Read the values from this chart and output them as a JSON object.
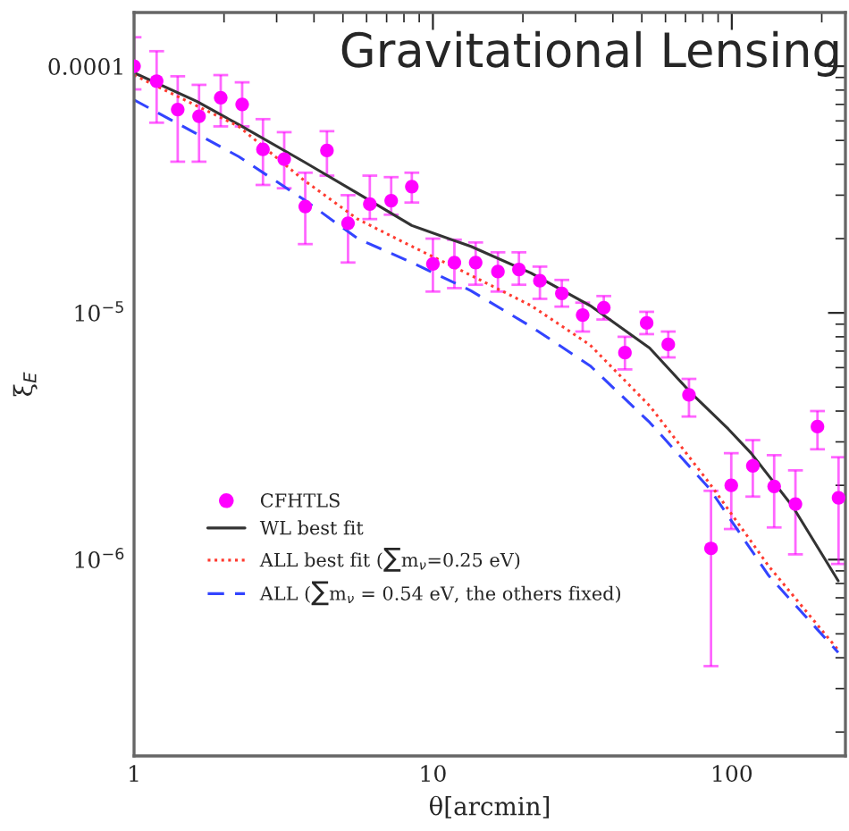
{
  "chart_data": {
    "type": "line",
    "title": "Gravitational Lensing",
    "xlabel": "θ[arcmin]",
    "ylabel": "ξ$_{E}$",
    "log": "xy",
    "xlim": [
      1,
      240
    ],
    "ylim": [
      1.6e-07,
      0.000165
    ],
    "xticks": [
      1,
      10,
      100
    ],
    "yticks": [
      {
        "value": 0.0001,
        "label": "0.0001"
      },
      {
        "value": 1e-05,
        "label": "10$^{−5}$"
      },
      {
        "value": 1e-06,
        "label": "10$^{−6}$"
      }
    ],
    "grid": false,
    "legend": "bottom left",
    "series": [
      {
        "name": "CFHTLS",
        "type": "scatter",
        "marker": "circle",
        "color": "#ff00ff",
        "x": [
          1.0,
          1.19,
          1.4,
          1.65,
          1.95,
          2.3,
          2.7,
          3.18,
          3.74,
          4.42,
          5.2,
          6.15,
          7.25,
          8.5,
          10.0,
          11.8,
          13.9,
          16.5,
          19.4,
          22.8,
          27.0,
          31.7,
          37.3,
          43.9,
          51.9,
          61.3,
          71.9,
          85.2,
          99.6,
          117.6,
          138.6,
          163.3,
          193.5,
          227.6
        ],
        "values": [
          0.0001,
          8.7e-05,
          6.67e-05,
          6.27e-05,
          7.45e-05,
          7e-05,
          4.6e-05,
          4.2e-05,
          2.7e-05,
          4.55e-05,
          2.31e-05,
          2.76e-05,
          2.85e-05,
          3.25e-05,
          1.58e-05,
          1.6e-05,
          1.6e-05,
          1.47e-05,
          1.5e-05,
          1.35e-05,
          1.2e-05,
          9.8e-06,
          1.05e-05,
          6.9e-06,
          9.1e-06,
          7.45e-06,
          4.65e-06,
          1.11e-06,
          2e-06,
          2.4e-06,
          1.98e-06,
          1.68e-06,
          3.46e-06,
          1.78e-06
        ],
        "errors": [
          [
            8.05e-05,
            0.000131
          ],
          [
            5.9e-05,
            0.000115
          ],
          [
            4.1e-05,
            9.1e-05
          ],
          [
            4.1e-05,
            8.4e-05
          ],
          [
            5.7e-05,
            9.2e-05
          ],
          [
            5.7e-05,
            8.6e-05
          ],
          [
            3.3e-05,
            6.1e-05
          ],
          [
            3.2e-05,
            5.4e-05
          ],
          [
            1.9e-05,
            3.7e-05
          ],
          [
            3.6e-05,
            5.45e-05
          ],
          [
            1.6e-05,
            3e-05
          ],
          [
            2.4e-05,
            3.6e-05
          ],
          [
            2.5e-05,
            3.55e-05
          ],
          [
            2.8e-05,
            3.7e-05
          ],
          [
            1.22e-05,
            2e-05
          ],
          [
            1.26e-05,
            1.98e-05
          ],
          [
            1.3e-05,
            1.93e-05
          ],
          [
            1.22e-05,
            1.76e-05
          ],
          [
            1.3e-05,
            1.76e-05
          ],
          [
            1.14e-05,
            1.54e-05
          ],
          [
            1.06e-05,
            1.36e-05
          ],
          [
            8.4e-06,
            1.1e-05
          ],
          [
            9.4e-06,
            1.17e-05
          ],
          [
            5.9e-06,
            8e-06
          ],
          [
            8.2e-06,
            1.01e-05
          ],
          [
            6.6e-06,
            8.4e-06
          ],
          [
            3.8e-06,
            5.4e-06
          ],
          [
            3.7e-07,
            1.9e-06
          ],
          [
            1.33e-06,
            2.7e-06
          ],
          [
            1.8e-06,
            3.05e-06
          ],
          [
            1.35e-06,
            2.65e-06
          ],
          [
            1.05e-06,
            2.3e-06
          ],
          [
            2.8e-06,
            4e-06
          ],
          [
            9.6e-07,
            2.6e-06
          ]
        ]
      },
      {
        "name": "WL best fit",
        "line_style": "solid",
        "color": "#333333",
        "x": [
          1.0,
          1.62,
          2.24,
          3.7,
          5.6,
          8.5,
          13.4,
          21.3,
          33.6,
          53.1,
          73.5,
          97.4,
          116,
          160,
          227
        ],
        "values": [
          9.4e-05,
          7.2e-05,
          5.8e-05,
          4.1e-05,
          3.05e-05,
          2.26e-05,
          1.86e-05,
          1.45e-05,
          1.07e-05,
          7.2e-06,
          4.7e-06,
          3.38e-06,
          2.7e-06,
          1.64e-06,
          8.2e-07
        ]
      },
      {
        "name": "ALL best fit (∑m$_{ν}$=0.25 eV)",
        "line_style": "dotted",
        "color": "#ff3b30",
        "x": [
          1.0,
          2.24,
          3.7,
          5.6,
          8.5,
          13.4,
          21.3,
          33.6,
          53.1,
          84.2,
          133,
          227
        ],
        "values": [
          9.2e-05,
          5.7e-05,
          3.45e-05,
          2.4e-05,
          1.86e-05,
          1.42e-05,
          1.07e-05,
          7.4e-06,
          4.2e-06,
          2.04e-06,
          9.4e-07,
          4.3e-07
        ]
      },
      {
        "name": "ALL (∑m$_{ν}$ = 0.54 eV, the others fixed)",
        "line_style": "dashed",
        "color": "#3344ff",
        "x": [
          1.0,
          2.24,
          3.7,
          5.6,
          8.5,
          13.4,
          21.3,
          33.6,
          53.1,
          84.2,
          133,
          227
        ],
        "values": [
          7.3e-05,
          4.3e-05,
          2.88e-05,
          2e-05,
          1.6e-05,
          1.23e-05,
          8.8e-06,
          6.1e-06,
          3.6e-06,
          1.94e-06,
          8.6e-07,
          4.2e-07
        ]
      }
    ]
  }
}
